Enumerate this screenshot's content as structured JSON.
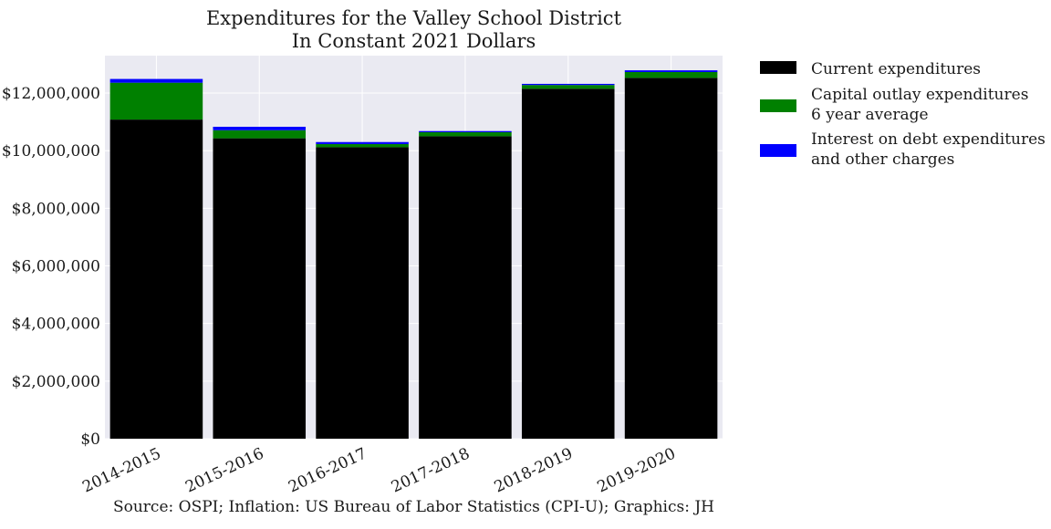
{
  "chart_data": {
    "type": "bar",
    "stacked": true,
    "title_lines": [
      "Expenditures for the Valley School District",
      "In Constant 2021 Dollars"
    ],
    "xlabel": "",
    "ylabel": "",
    "categories": [
      "2014-2015",
      "2015-2016",
      "2016-2017",
      "2017-2018",
      "2018-2019",
      "2019-2020"
    ],
    "series": [
      {
        "name": "Current expenditures",
        "legend_lines": [
          "Current expenditures"
        ],
        "color": "#000000",
        "values": [
          11080000,
          10430000,
          10120000,
          10500000,
          12150000,
          12530000
        ]
      },
      {
        "name": "Capital outlay expenditures 6 year average",
        "legend_lines": [
          "Capital outlay expenditures",
          "6 year average"
        ],
        "color": "#008000",
        "values": [
          1280000,
          280000,
          110000,
          140000,
          130000,
          200000
        ]
      },
      {
        "name": "Interest on debt expenditures and other charges",
        "legend_lines": [
          "Interest on debt expenditures",
          "and other charges"
        ],
        "color": "#0000ff",
        "values": [
          130000,
          120000,
          70000,
          40000,
          40000,
          60000
        ]
      }
    ],
    "ylim": [
      0,
      13300000
    ],
    "yticks": [
      0,
      2000000,
      4000000,
      6000000,
      8000000,
      10000000,
      12000000
    ],
    "ytick_labels": [
      "$0",
      "$2,000,000",
      "$4,000,000",
      "$6,000,000",
      "$8,000,000",
      "$10,000,000",
      "$12,000,000"
    ],
    "grid": true,
    "legend_position": "outside-right",
    "source": "Source: OSPI; Inflation: US Bureau of Labor Statistics (CPI-U); Graphics: JH",
    "plot_background": "#eaeaf2",
    "grid_color": "#ffffff"
  }
}
